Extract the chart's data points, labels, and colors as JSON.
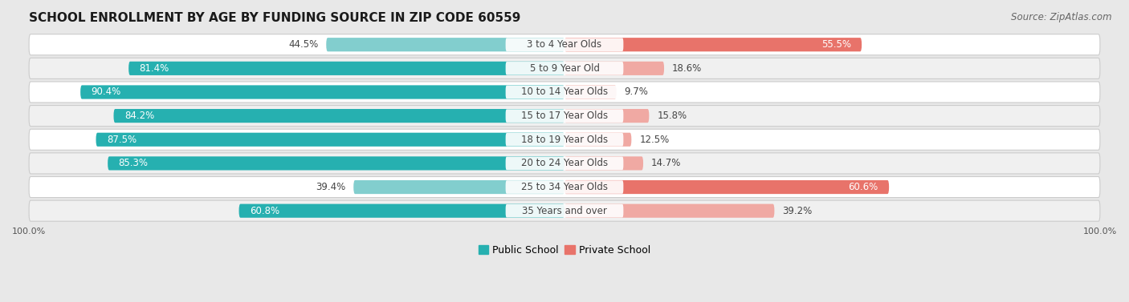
{
  "title": "SCHOOL ENROLLMENT BY AGE BY FUNDING SOURCE IN ZIP CODE 60559",
  "source": "Source: ZipAtlas.com",
  "categories": [
    "3 to 4 Year Olds",
    "5 to 9 Year Old",
    "10 to 14 Year Olds",
    "15 to 17 Year Olds",
    "18 to 19 Year Olds",
    "20 to 24 Year Olds",
    "25 to 34 Year Olds",
    "35 Years and over"
  ],
  "public_values": [
    44.5,
    81.4,
    90.4,
    84.2,
    87.5,
    85.3,
    39.4,
    60.8
  ],
  "private_values": [
    55.5,
    18.6,
    9.7,
    15.8,
    12.5,
    14.7,
    60.6,
    39.2
  ],
  "public_color_dark": "#26b0b0",
  "public_color_light": "#82cece",
  "private_color_dark": "#e8736a",
  "private_color_light": "#f0a9a3",
  "bar_height": 0.58,
  "bg_color": "#e8e8e8",
  "row_bg_colors": [
    "#ffffff",
    "#f0f0f0"
  ],
  "label_color_white": "#ffffff",
  "label_color_dark": "#444444",
  "xlim_left": -100,
  "xlim_right": 100,
  "title_fontsize": 11,
  "source_fontsize": 8.5,
  "label_fontsize": 8.5,
  "cat_fontsize": 8.5,
  "legend_fontsize": 9,
  "axis_label_fontsize": 8,
  "public_threshold": 60,
  "private_threshold": 50
}
